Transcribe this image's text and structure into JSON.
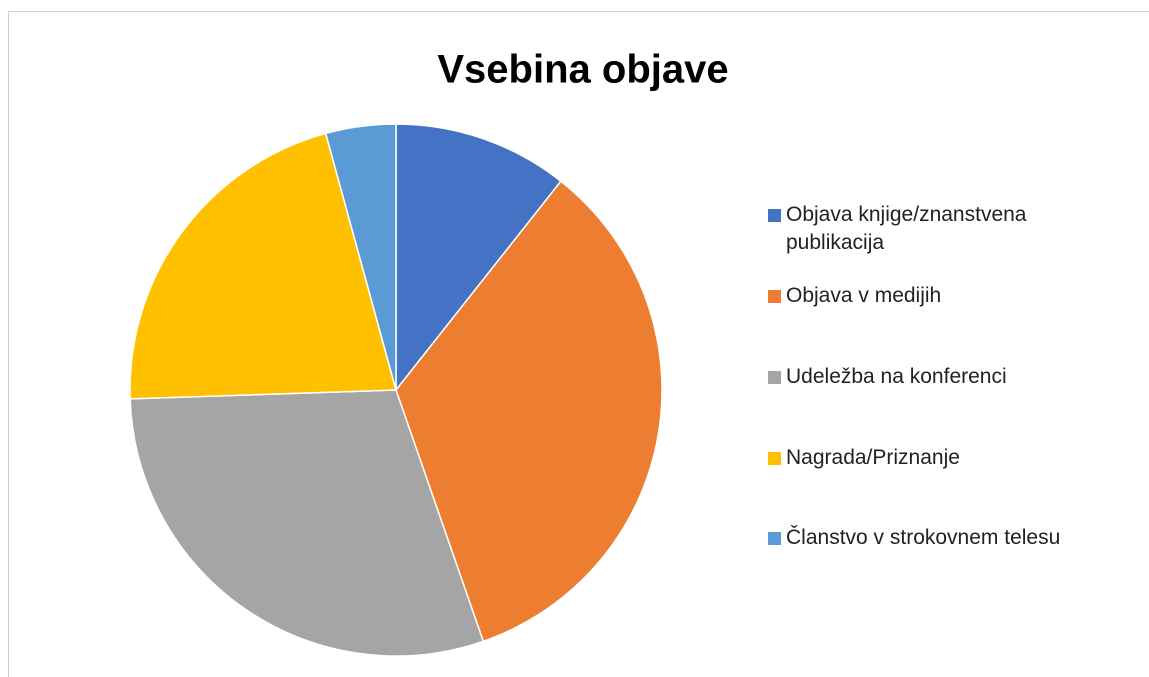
{
  "chart_data": {
    "type": "pie",
    "title": "Vsebina objave",
    "categories": [
      "Objava knjige/znanstvena publikacija",
      "Objava v medijih",
      "Udeležba na konferenci",
      "Nagrada/Priznanje",
      "Članstvo v strokovnem telesu"
    ],
    "values": [
      5,
      16,
      14,
      10,
      2
    ],
    "colors": [
      "#4472c4",
      "#ed7d31",
      "#a5a5a5",
      "#ffc000",
      "#5b9bd5"
    ],
    "legend": "right"
  }
}
